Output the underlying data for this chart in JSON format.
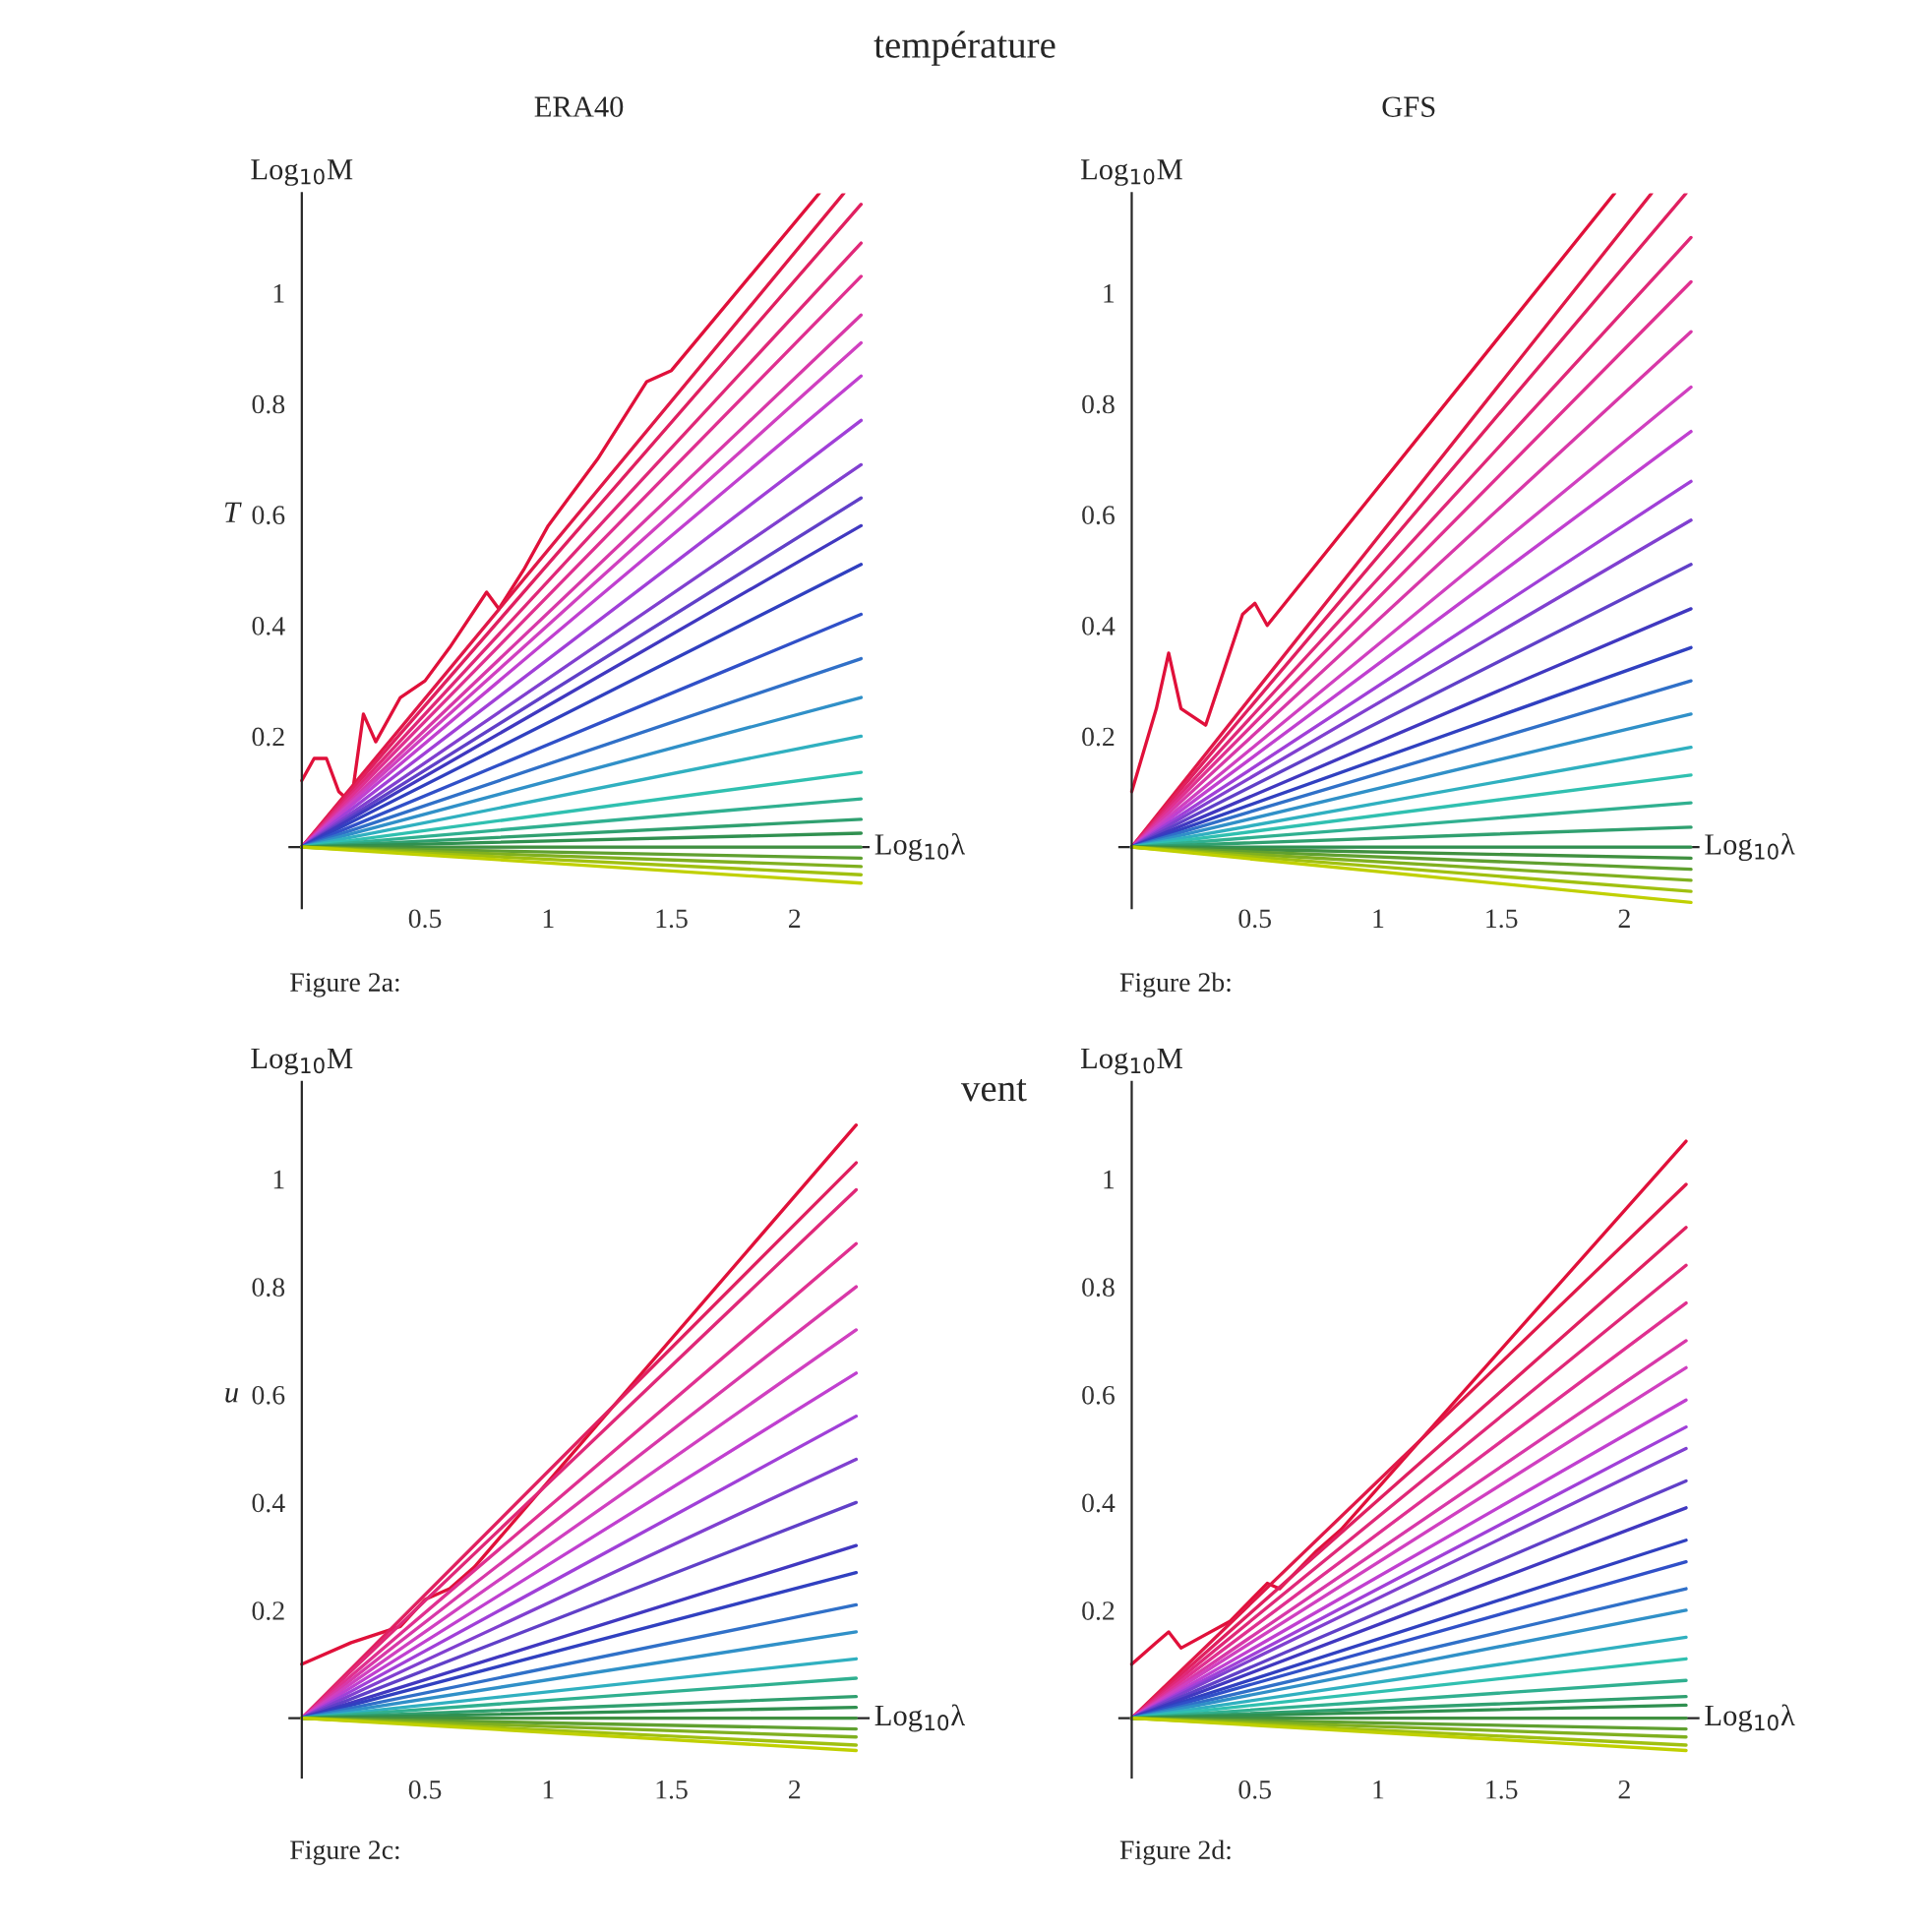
{
  "chart_data": [
    {
      "type": "line",
      "title": "ERA40",
      "xlabel": "Log$_{10}$λ",
      "ylabel": "Log$_{10}$M",
      "annotations": [
        "température",
        "T",
        "Figure 2a:"
      ],
      "x": [
        0,
        2.27
      ],
      "xlim": [
        -0.05,
        2.3
      ],
      "ylim": [
        -0.11,
        1.18
      ],
      "xticks": [
        0.5,
        1,
        1.5,
        2
      ],
      "yticks": [
        0.2,
        0.4,
        0.6,
        0.8,
        1
      ],
      "series": [
        {
          "color": "#e0103a",
          "x": [
            0,
            0.05,
            0.1,
            0.15,
            0.2,
            0.25,
            0.3,
            0.4,
            0.5,
            0.6,
            0.75,
            0.8,
            0.9,
            1.0,
            1.2,
            1.4,
            1.5,
            2.1
          ],
          "values": [
            0.12,
            0.16,
            0.16,
            0.1,
            0.08,
            0.24,
            0.19,
            0.27,
            0.3,
            0.36,
            0.46,
            0.43,
            0.5,
            0.58,
            0.7,
            0.84,
            0.86,
            1.18
          ]
        },
        {
          "color": "#e01848",
          "x": [
            0,
            2.2
          ],
          "values": [
            0,
            1.18
          ]
        },
        {
          "color": "#e02060",
          "values": [
            0,
            1.16
          ]
        },
        {
          "color": "#e02878",
          "values": [
            0,
            1.09
          ]
        },
        {
          "color": "#e03090",
          "values": [
            0,
            1.03
          ]
        },
        {
          "color": "#d838a8",
          "values": [
            0,
            0.96
          ]
        },
        {
          "color": "#d040c0",
          "values": [
            0,
            0.91
          ]
        },
        {
          "color": "#c040d0",
          "values": [
            0,
            0.85
          ]
        },
        {
          "color": "#a040d8",
          "values": [
            0,
            0.77
          ]
        },
        {
          "color": "#8040d0",
          "values": [
            0,
            0.69
          ]
        },
        {
          "color": "#6040c8",
          "values": [
            0,
            0.63
          ]
        },
        {
          "color": "#4038c0",
          "values": [
            0,
            0.58
          ]
        },
        {
          "color": "#3040c0",
          "values": [
            0,
            0.51
          ]
        },
        {
          "color": "#3050c8",
          "values": [
            0,
            0.42
          ]
        },
        {
          "color": "#3070c8",
          "values": [
            0,
            0.34
          ]
        },
        {
          "color": "#3090c8",
          "values": [
            0,
            0.27
          ]
        },
        {
          "color": "#30b0c0",
          "values": [
            0,
            0.2
          ]
        },
        {
          "color": "#30c0b0",
          "values": [
            0,
            0.135
          ]
        },
        {
          "color": "#30b090",
          "values": [
            0,
            0.087
          ]
        },
        {
          "color": "#30a070",
          "values": [
            0,
            0.05
          ]
        },
        {
          "color": "#309050",
          "values": [
            0,
            0.025
          ]
        },
        {
          "color": "#409040",
          "values": [
            0,
            0
          ]
        },
        {
          "color": "#60a030",
          "values": [
            0,
            -0.02
          ]
        },
        {
          "color": "#80b020",
          "values": [
            0,
            -0.035
          ]
        },
        {
          "color": "#a0c010",
          "values": [
            0,
            -0.05
          ]
        },
        {
          "color": "#c0d000",
          "values": [
            0,
            -0.065
          ]
        }
      ]
    },
    {
      "type": "line",
      "title": "GFS",
      "xlabel": "Log$_{10}$λ",
      "ylabel": "Log$_{10}$M",
      "annotations": [
        "Figure 2b:"
      ],
      "x": [
        0,
        2.27
      ],
      "xlim": [
        -0.05,
        2.3
      ],
      "ylim": [
        -0.11,
        1.18
      ],
      "xticks": [
        0.5,
        1,
        1.5,
        2
      ],
      "yticks": [
        0.2,
        0.4,
        0.6,
        0.8,
        1
      ],
      "series": [
        {
          "color": "#e0103a",
          "x": [
            0,
            0.1,
            0.15,
            0.2,
            0.3,
            0.45,
            0.5,
            0.55,
            1.96
          ],
          "values": [
            0.1,
            0.25,
            0.35,
            0.25,
            0.22,
            0.42,
            0.44,
            0.4,
            1.18
          ]
        },
        {
          "color": "#e01848",
          "x": [
            0,
            2.11
          ],
          "values": [
            0,
            1.18
          ]
        },
        {
          "color": "#e02060",
          "x": [
            0,
            2.25
          ],
          "values": [
            0,
            1.18
          ]
        },
        {
          "color": "#e02878",
          "values": [
            0,
            1.1
          ]
        },
        {
          "color": "#e03090",
          "values": [
            0,
            1.02
          ]
        },
        {
          "color": "#d838a8",
          "values": [
            0,
            0.93
          ]
        },
        {
          "color": "#d040c0",
          "values": [
            0,
            0.83
          ]
        },
        {
          "color": "#c040d0",
          "values": [
            0,
            0.75
          ]
        },
        {
          "color": "#a040d8",
          "values": [
            0,
            0.66
          ]
        },
        {
          "color": "#8040d0",
          "values": [
            0,
            0.59
          ]
        },
        {
          "color": "#6040c8",
          "values": [
            0,
            0.51
          ]
        },
        {
          "color": "#4038c0",
          "values": [
            0,
            0.43
          ]
        },
        {
          "color": "#3040c0",
          "values": [
            0,
            0.36
          ]
        },
        {
          "color": "#3070c8",
          "values": [
            0,
            0.3
          ]
        },
        {
          "color": "#3090c8",
          "values": [
            0,
            0.24
          ]
        },
        {
          "color": "#30b0c0",
          "values": [
            0,
            0.18
          ]
        },
        {
          "color": "#30c0b0",
          "values": [
            0,
            0.13
          ]
        },
        {
          "color": "#30b090",
          "values": [
            0,
            0.08
          ]
        },
        {
          "color": "#30a070",
          "values": [
            0,
            0.036
          ]
        },
        {
          "color": "#309050",
          "values": [
            0,
            0
          ]
        },
        {
          "color": "#409040",
          "values": [
            0,
            -0.02
          ]
        },
        {
          "color": "#60a030",
          "values": [
            0,
            -0.04
          ]
        },
        {
          "color": "#80b020",
          "values": [
            0,
            -0.06
          ]
        },
        {
          "color": "#a0c010",
          "values": [
            0,
            -0.08
          ]
        },
        {
          "color": "#c0d000",
          "values": [
            0,
            -0.1
          ]
        }
      ]
    },
    {
      "type": "line",
      "xlabel": "Log$_{10}$λ",
      "ylabel": "Log$_{10}$M",
      "annotations": [
        "vent",
        "u",
        "Figure 2c:"
      ],
      "x": [
        0,
        2.25
      ],
      "xlim": [
        -0.05,
        2.3
      ],
      "ylim": [
        -0.11,
        1.18
      ],
      "xticks": [
        0.5,
        1,
        1.5,
        2
      ],
      "yticks": [
        0.2,
        0.4,
        0.6,
        0.8,
        1
      ],
      "series": [
        {
          "color": "#e0103a",
          "x": [
            0,
            0.2,
            0.4,
            0.5,
            0.6,
            0.7,
            2.25
          ],
          "values": [
            0.1,
            0.14,
            0.17,
            0.22,
            0.24,
            0.28,
            1.1
          ]
        },
        {
          "color": "#e02060",
          "values": [
            0,
            1.03
          ]
        },
        {
          "color": "#e02878",
          "values": [
            0,
            0.98
          ]
        },
        {
          "color": "#e03090",
          "values": [
            0,
            0.88
          ]
        },
        {
          "color": "#d838a8",
          "values": [
            0,
            0.8
          ]
        },
        {
          "color": "#d040c0",
          "values": [
            0,
            0.72
          ]
        },
        {
          "color": "#c040d0",
          "values": [
            0,
            0.64
          ]
        },
        {
          "color": "#a040d8",
          "values": [
            0,
            0.56
          ]
        },
        {
          "color": "#8040d0",
          "values": [
            0,
            0.48
          ]
        },
        {
          "color": "#6040c8",
          "values": [
            0,
            0.4
          ]
        },
        {
          "color": "#4038c0",
          "values": [
            0,
            0.32
          ]
        },
        {
          "color": "#3040c0",
          "values": [
            0,
            0.27
          ]
        },
        {
          "color": "#3070c8",
          "values": [
            0,
            0.21
          ]
        },
        {
          "color": "#3090c8",
          "values": [
            0,
            0.16
          ]
        },
        {
          "color": "#30b0c0",
          "values": [
            0,
            0.11
          ]
        },
        {
          "color": "#30b090",
          "values": [
            0,
            0.074
          ]
        },
        {
          "color": "#30a070",
          "values": [
            0,
            0.04
          ]
        },
        {
          "color": "#309050",
          "values": [
            0,
            0.02
          ]
        },
        {
          "color": "#409040",
          "values": [
            0,
            0
          ]
        },
        {
          "color": "#60a030",
          "values": [
            0,
            -0.02
          ]
        },
        {
          "color": "#80b020",
          "values": [
            0,
            -0.035
          ]
        },
        {
          "color": "#a0c010",
          "values": [
            0,
            -0.05
          ]
        },
        {
          "color": "#c0d000",
          "values": [
            0,
            -0.06
          ]
        }
      ]
    },
    {
      "type": "line",
      "xlabel": "Log$_{10}$λ",
      "ylabel": "Log$_{10}$M",
      "annotations": [
        "Figure 2d:"
      ],
      "x": [
        0,
        2.25
      ],
      "xlim": [
        -0.05,
        2.3
      ],
      "ylim": [
        -0.11,
        1.18
      ],
      "xticks": [
        0.5,
        1,
        1.5,
        2
      ],
      "yticks": [
        0.2,
        0.4,
        0.6,
        0.8,
        1
      ],
      "series": [
        {
          "color": "#e0103a",
          "x": [
            0,
            0.1,
            0.15,
            0.2,
            0.4,
            0.55,
            0.6,
            0.75,
            0.85,
            2.25
          ],
          "values": [
            0.1,
            0.14,
            0.16,
            0.13,
            0.18,
            0.25,
            0.24,
            0.31,
            0.35,
            1.07
          ]
        },
        {
          "color": "#e01848",
          "values": [
            0,
            0.99
          ]
        },
        {
          "color": "#e02060",
          "values": [
            0,
            0.91
          ]
        },
        {
          "color": "#e02878",
          "values": [
            0,
            0.84
          ]
        },
        {
          "color": "#e03090",
          "values": [
            0,
            0.77
          ]
        },
        {
          "color": "#d838a8",
          "values": [
            0,
            0.7
          ]
        },
        {
          "color": "#d040c0",
          "values": [
            0,
            0.65
          ]
        },
        {
          "color": "#c040d0",
          "values": [
            0,
            0.59
          ]
        },
        {
          "color": "#a040d8",
          "values": [
            0,
            0.54
          ]
        },
        {
          "color": "#8040d0",
          "values": [
            0,
            0.5
          ]
        },
        {
          "color": "#6040c8",
          "values": [
            0,
            0.44
          ]
        },
        {
          "color": "#4038c0",
          "values": [
            0,
            0.39
          ]
        },
        {
          "color": "#3040c0",
          "values": [
            0,
            0.33
          ]
        },
        {
          "color": "#3050c8",
          "values": [
            0,
            0.29
          ]
        },
        {
          "color": "#3070c8",
          "values": [
            0,
            0.24
          ]
        },
        {
          "color": "#3090c8",
          "values": [
            0,
            0.2
          ]
        },
        {
          "color": "#30b0c0",
          "values": [
            0,
            0.15
          ]
        },
        {
          "color": "#30c0b0",
          "values": [
            0,
            0.11
          ]
        },
        {
          "color": "#30b090",
          "values": [
            0,
            0.07
          ]
        },
        {
          "color": "#30a070",
          "values": [
            0,
            0.04
          ]
        },
        {
          "color": "#309050",
          "values": [
            0,
            0.024
          ]
        },
        {
          "color": "#409040",
          "values": [
            0,
            0
          ]
        },
        {
          "color": "#60a030",
          "values": [
            0,
            -0.02
          ]
        },
        {
          "color": "#80b020",
          "values": [
            0,
            -0.035
          ]
        },
        {
          "color": "#a0c010",
          "values": [
            0,
            -0.05
          ]
        },
        {
          "color": "#c0d000",
          "values": [
            0,
            -0.06
          ]
        }
      ]
    }
  ]
}
